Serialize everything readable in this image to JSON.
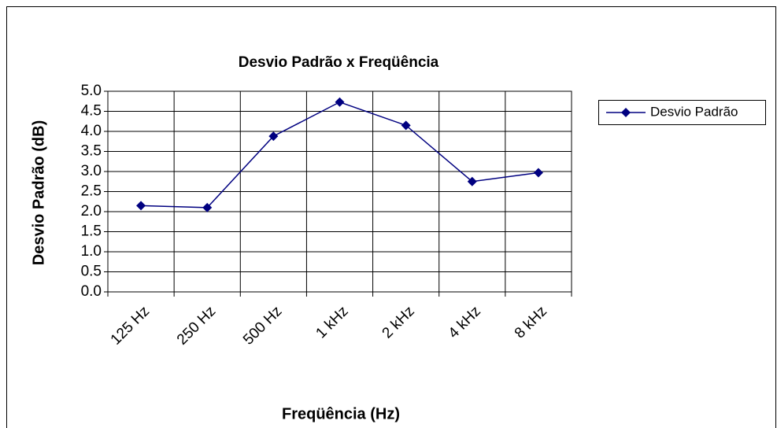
{
  "chart_data": {
    "type": "line",
    "title": "Desvio Padrão x Freqüência",
    "x_label": "Freqüência (Hz)",
    "y_label": "Desvio Padrão (dB)",
    "categories": [
      "125 Hz",
      "250 Hz",
      "500 Hz",
      "1 kHz",
      "2 kHz",
      "4 kHz",
      "8 kHz"
    ],
    "series": [
      {
        "name": "Desvio Padrão",
        "color": "#000080",
        "values": [
          2.15,
          2.1,
          3.88,
          4.73,
          4.15,
          2.75,
          2.97
        ]
      }
    ],
    "ylim": [
      0,
      5
    ],
    "yticks": [
      {
        "value": 0,
        "label": "0.0"
      },
      0.5,
      {
        "value": 1,
        "label": "1.0"
      },
      1.5,
      {
        "value": 2,
        "label": "2.0"
      },
      2.5,
      {
        "value": 3,
        "label": "3.0"
      },
      3.5,
      {
        "value": 4,
        "label": "4.0"
      },
      4.5,
      {
        "value": 5,
        "label": "5.0"
      }
    ],
    "grid": true,
    "legend": "right"
  }
}
